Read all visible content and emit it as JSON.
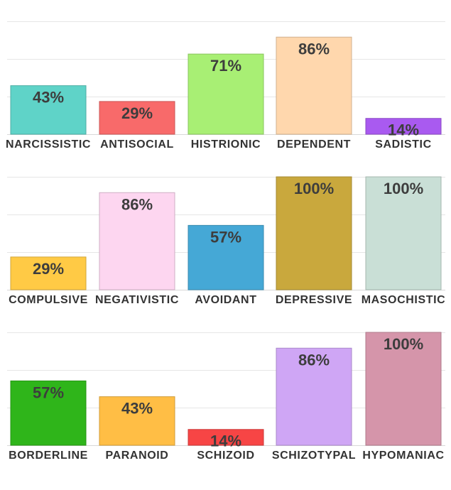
{
  "chart_data": [
    {
      "type": "bar",
      "categories": [
        "NARCISSISTIC",
        "ANTISOCIAL",
        "HISTRIONIC",
        "DEPENDENT",
        "SADISTIC"
      ],
      "values": [
        43,
        29,
        71,
        86,
        14
      ],
      "labels": [
        "43%",
        "29%",
        "71%",
        "86%",
        "14%"
      ],
      "colors": [
        "#5fd3c8",
        "#f86a6a",
        "#a8ef74",
        "#ffd7ad",
        "#a95af0"
      ],
      "ylim": [
        0,
        100
      ],
      "grid": true
    },
    {
      "type": "bar",
      "categories": [
        "COMPULSIVE",
        "NEGATIVISTIC",
        "AVOIDANT",
        "DEPRESSIVE",
        "MASOCHISTIC"
      ],
      "values": [
        29,
        86,
        57,
        100,
        100
      ],
      "labels": [
        "29%",
        "86%",
        "57%",
        "100%",
        "100%"
      ],
      "colors": [
        "#ffca45",
        "#fdd6f0",
        "#45a8d6",
        "#c9a83d",
        "#c9dfd6"
      ],
      "ylim": [
        0,
        100
      ],
      "grid": true
    },
    {
      "type": "bar",
      "categories": [
        "BORDERLINE",
        "PARANOID",
        "SCHIZOID",
        "SCHIZOTYPAL",
        "HYPOMANIAC"
      ],
      "values": [
        57,
        43,
        14,
        86,
        100
      ],
      "labels": [
        "57%",
        "43%",
        "14%",
        "86%",
        "100%"
      ],
      "colors": [
        "#2fb51a",
        "#ffbe45",
        "#f74545",
        "#cfa6f5",
        "#d595aa"
      ],
      "ylim": [
        0,
        100
      ],
      "grid": true
    }
  ]
}
